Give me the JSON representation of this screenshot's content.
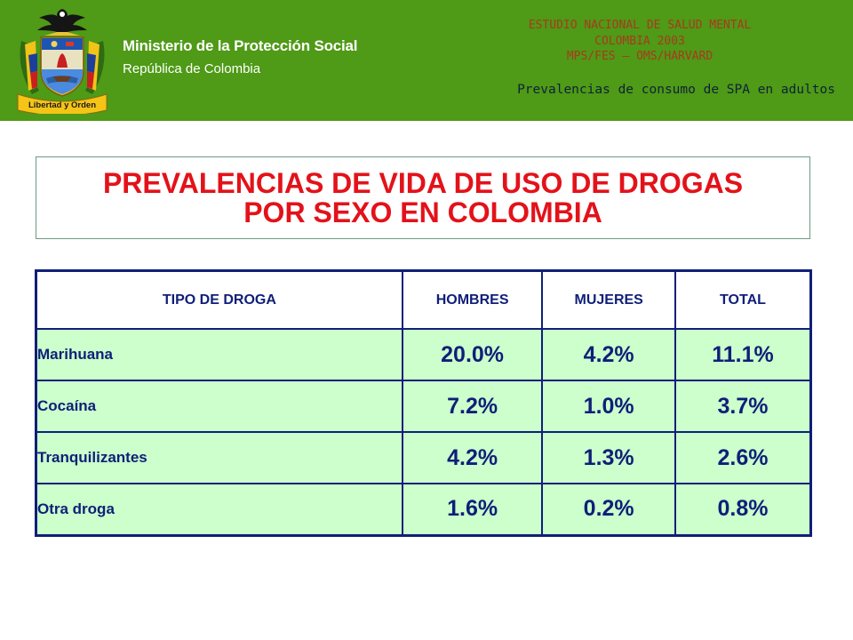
{
  "header": {
    "crest_motto": "Libertad y Orden",
    "ministry": "Ministerio de la Protección Social",
    "republic": "República de Colombia",
    "study_lines": [
      "ESTUDIO NACIONAL DE SALUD MENTAL",
      "COLOMBIA 2003",
      "MPS/FES – OMS/HARVARD"
    ],
    "subtitle": "Prevalencias de consumo de SPA en adultos",
    "background_color": "#4f9a16"
  },
  "title": {
    "line1": "PREVALENCIAS DE VIDA DE USO DE DROGAS",
    "line2": "POR SEXO EN COLOMBIA",
    "color": "#e3121a"
  },
  "table": {
    "headers": [
      "TIPO DE DROGA",
      "HOMBRES",
      "MUJERES",
      "TOTAL"
    ],
    "rows": [
      {
        "drug": "Marihuana",
        "hombres": "20.0%",
        "mujeres": "4.2%",
        "total": "11.1%"
      },
      {
        "drug": "Cocaína",
        "hombres": "7.2%",
        "mujeres": "1.0%",
        "total": "3.7%"
      },
      {
        "drug": "Tranquilizantes",
        "hombres": "4.2%",
        "mujeres": "1.3%",
        "total": "2.6%"
      },
      {
        "drug": "Otra droga",
        "hombres": "1.6%",
        "mujeres": "0.2%",
        "total": "0.8%"
      }
    ],
    "row_color": "#ccffcc",
    "border_color": "#0f1f78"
  }
}
